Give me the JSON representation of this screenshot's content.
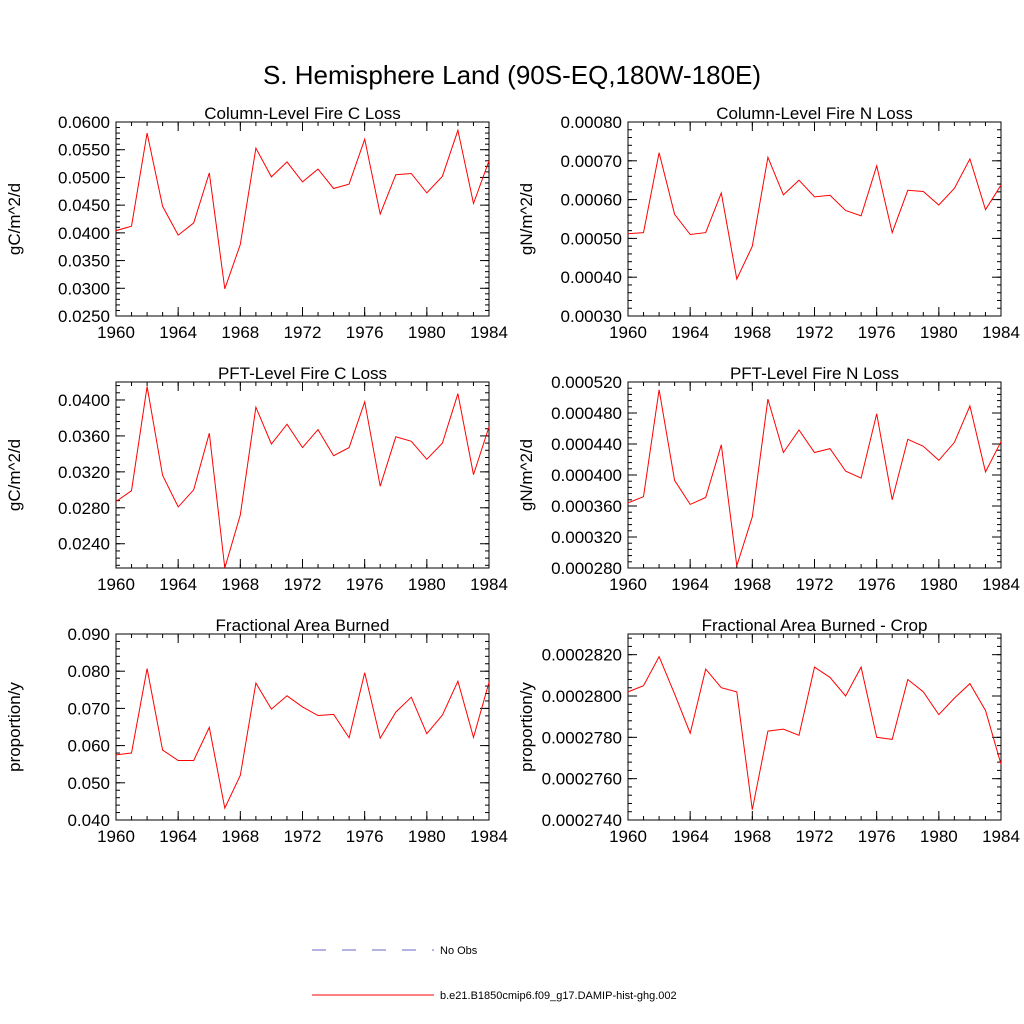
{
  "title": "S. Hemisphere Land (90S-EQ,180W-180E)",
  "colors": {
    "series": "#ff0000",
    "obs": "#6a6ac8",
    "axis": "#000000"
  },
  "legend": {
    "placement": "bottom-center",
    "items": [
      {
        "label": "No Obs",
        "style": "dashed",
        "color": "#6a6ac8"
      },
      {
        "label": "b.e21.B1850cmip6.f09_g17.DAMIP-hist-ghg.002",
        "style": "solid",
        "color": "#ff0000"
      }
    ]
  },
  "chart_data": [
    {
      "type": "line",
      "title": "Column-Level Fire C Loss",
      "ylabel": "gC/m^2/d",
      "xlim": [
        1960,
        1984
      ],
      "ylim": [
        0.025,
        0.06
      ],
      "xticks": [
        "1960",
        "1964",
        "1968",
        "1972",
        "1976",
        "1980",
        "1984"
      ],
      "yticks": [
        "0.0250",
        "0.0300",
        "0.0350",
        "0.0400",
        "0.0450",
        "0.0500",
        "0.0550",
        "0.0600"
      ],
      "x": [
        1960,
        1961,
        1962,
        1963,
        1964,
        1965,
        1966,
        1967,
        1968,
        1969,
        1970,
        1971,
        1972,
        1973,
        1974,
        1975,
        1976,
        1977,
        1978,
        1979,
        1980,
        1981,
        1982,
        1983,
        1984
      ],
      "series": [
        {
          "values": [
            0.0404,
            0.0412,
            0.058,
            0.0448,
            0.0396,
            0.0418,
            0.0508,
            0.0299,
            0.0379,
            0.0553,
            0.0501,
            0.0528,
            0.0492,
            0.0515,
            0.048,
            0.0488,
            0.0569,
            0.0434,
            0.0505,
            0.0507,
            0.0472,
            0.0502,
            0.0585,
            0.0453,
            0.053
          ]
        }
      ]
    },
    {
      "type": "line",
      "title": "Column-Level Fire N Loss",
      "ylabel": "gN/m^2/d",
      "xlim": [
        1960,
        1984
      ],
      "ylim": [
        0.0003,
        0.0008
      ],
      "xticks": [
        "1960",
        "1964",
        "1968",
        "1972",
        "1976",
        "1980",
        "1984"
      ],
      "yticks": [
        "0.00030",
        "0.00040",
        "0.00050",
        "0.00060",
        "0.00070",
        "0.00080"
      ],
      "x": [
        1960,
        1961,
        1962,
        1963,
        1964,
        1965,
        1966,
        1967,
        1968,
        1969,
        1970,
        1971,
        1972,
        1973,
        1974,
        1975,
        1976,
        1977,
        1978,
        1979,
        1980,
        1981,
        1982,
        1983,
        1984
      ],
      "series": [
        {
          "values": [
            0.000512,
            0.000515,
            0.000721,
            0.000562,
            0.00051,
            0.000515,
            0.000617,
            0.000395,
            0.00048,
            0.000709,
            0.000612,
            0.00065,
            0.000607,
            0.000611,
            0.000572,
            0.000558,
            0.000687,
            0.000515,
            0.000624,
            0.000621,
            0.000586,
            0.000629,
            0.000705,
            0.000574,
            0.000637
          ]
        }
      ]
    },
    {
      "type": "line",
      "title": "PFT-Level Fire C Loss",
      "ylabel": "gC/m^2/d",
      "xlim": [
        1960,
        1984
      ],
      "ylim": [
        0.0213,
        0.042
      ],
      "xticks": [
        "1960",
        "1964",
        "1968",
        "1972",
        "1976",
        "1980",
        "1984"
      ],
      "yticks": [
        "0.0240",
        "0.0280",
        "0.0320",
        "0.0360",
        "0.0400"
      ],
      "x": [
        1960,
        1961,
        1962,
        1963,
        1964,
        1965,
        1966,
        1967,
        1968,
        1969,
        1970,
        1971,
        1972,
        1973,
        1974,
        1975,
        1976,
        1977,
        1978,
        1979,
        1980,
        1981,
        1982,
        1983,
        1984
      ],
      "series": [
        {
          "values": [
            0.0287,
            0.0299,
            0.0415,
            0.0316,
            0.0281,
            0.03,
            0.0363,
            0.0213,
            0.0272,
            0.0392,
            0.0351,
            0.0373,
            0.0347,
            0.0367,
            0.0338,
            0.0347,
            0.0398,
            0.0304,
            0.0359,
            0.0354,
            0.0334,
            0.0352,
            0.0407,
            0.0317,
            0.037
          ]
        }
      ]
    },
    {
      "type": "line",
      "title": "PFT-Level Fire N Loss",
      "ylabel": "gN/m^2/d",
      "xlim": [
        1960,
        1984
      ],
      "ylim": [
        0.00028,
        0.00052
      ],
      "xticks": [
        "1960",
        "1964",
        "1968",
        "1972",
        "1976",
        "1980",
        "1984"
      ],
      "yticks": [
        "0.000280",
        "0.000320",
        "0.000360",
        "0.000400",
        "0.000440",
        "0.000480",
        "0.000520"
      ],
      "x": [
        1960,
        1961,
        1962,
        1963,
        1964,
        1965,
        1966,
        1967,
        1968,
        1969,
        1970,
        1971,
        1972,
        1973,
        1974,
        1975,
        1976,
        1977,
        1978,
        1979,
        1980,
        1981,
        1982,
        1983,
        1984
      ],
      "series": [
        {
          "values": [
            0.000364,
            0.000372,
            0.00051,
            0.000393,
            0.000362,
            0.000371,
            0.000439,
            0.000283,
            0.000346,
            0.000498,
            0.000429,
            0.000458,
            0.000429,
            0.000434,
            0.000405,
            0.000396,
            0.000479,
            0.000368,
            0.000446,
            0.000437,
            0.000419,
            0.000442,
            0.000489,
            0.000404,
            0.000443
          ]
        }
      ]
    },
    {
      "type": "line",
      "title": "Fractional Area Burned",
      "ylabel": "proportion/y",
      "xlim": [
        1960,
        1984
      ],
      "ylim": [
        0.04,
        0.09
      ],
      "xticks": [
        "1960",
        "1964",
        "1968",
        "1972",
        "1976",
        "1980",
        "1984"
      ],
      "yticks": [
        "0.040",
        "0.050",
        "0.060",
        "0.070",
        "0.080",
        "0.090"
      ],
      "x": [
        1960,
        1961,
        1962,
        1963,
        1964,
        1965,
        1966,
        1967,
        1968,
        1969,
        1970,
        1971,
        1972,
        1973,
        1974,
        1975,
        1976,
        1977,
        1978,
        1979,
        1980,
        1981,
        1982,
        1983,
        1984
      ],
      "series": [
        {
          "values": [
            0.0575,
            0.058,
            0.0807,
            0.0588,
            0.056,
            0.056,
            0.0649,
            0.0432,
            0.052,
            0.0768,
            0.0698,
            0.0734,
            0.0704,
            0.0681,
            0.0684,
            0.0621,
            0.0796,
            0.062,
            0.069,
            0.073,
            0.0632,
            0.0682,
            0.0773,
            0.0622,
            0.077
          ]
        }
      ]
    },
    {
      "type": "line",
      "title": "Fractional Area Burned - Crop",
      "ylabel": "proportion/y",
      "xlim": [
        1960,
        1984
      ],
      "ylim": [
        0.000274,
        0.000283
      ],
      "xticks": [
        "1960",
        "1964",
        "1968",
        "1972",
        "1976",
        "1980",
        "1984"
      ],
      "yticks": [
        "0.0002740",
        "0.0002760",
        "0.0002780",
        "0.0002800",
        "0.0002820"
      ],
      "x": [
        1960,
        1961,
        1962,
        1963,
        1964,
        1965,
        1966,
        1967,
        1968,
        1969,
        1970,
        1971,
        1972,
        1973,
        1974,
        1975,
        1976,
        1977,
        1978,
        1979,
        1980,
        1981,
        1982,
        1983,
        1984
      ],
      "series": [
        {
          "values": [
            0.0002802,
            0.0002805,
            0.0002819,
            0.0002801,
            0.0002782,
            0.0002813,
            0.0002804,
            0.0002802,
            0.0002745,
            0.0002783,
            0.0002784,
            0.0002781,
            0.0002814,
            0.0002809,
            0.00028,
            0.0002814,
            0.000278,
            0.0002779,
            0.0002808,
            0.0002802,
            0.0002791,
            0.0002799,
            0.0002806,
            0.0002793,
            0.0002767
          ]
        }
      ]
    }
  ]
}
